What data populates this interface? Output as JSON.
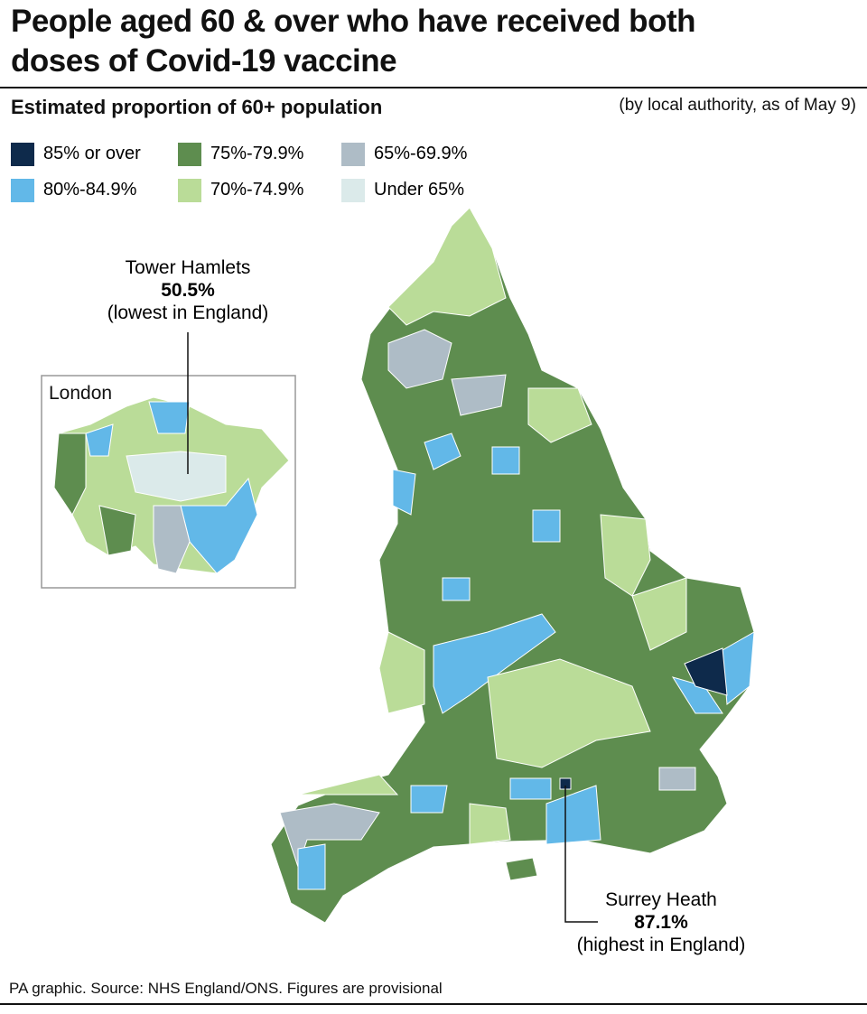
{
  "header": {
    "title_line1": "People aged 60 & over who have received both",
    "title_line2": "doses of Covid-19 vaccine",
    "subtitle": "Estimated proportion of 60+ population",
    "note": "(by local authority, as of May 9)"
  },
  "legend": [
    {
      "label": "85% or over",
      "color": "#0e2a4b"
    },
    {
      "label": "75%-79.9%",
      "color": "#5e8d4f"
    },
    {
      "label": "65%-69.9%",
      "color": "#aebcc6"
    },
    {
      "label": "80%-84.9%",
      "color": "#62b8e8"
    },
    {
      "label": "70%-74.9%",
      "color": "#badc98"
    },
    {
      "label": "Under 65%",
      "color": "#dbeaea"
    }
  ],
  "inset": {
    "label": "London"
  },
  "annotations": [
    {
      "name": "Tower Hamlets",
      "value": "50.5%",
      "note": "(lowest in England)"
    },
    {
      "name": "Surrey Heath",
      "value": "87.1%",
      "note": "(highest in England)"
    }
  ],
  "footer": {
    "source": "PA graphic. Source: NHS England/ONS. Figures are provisional"
  }
}
